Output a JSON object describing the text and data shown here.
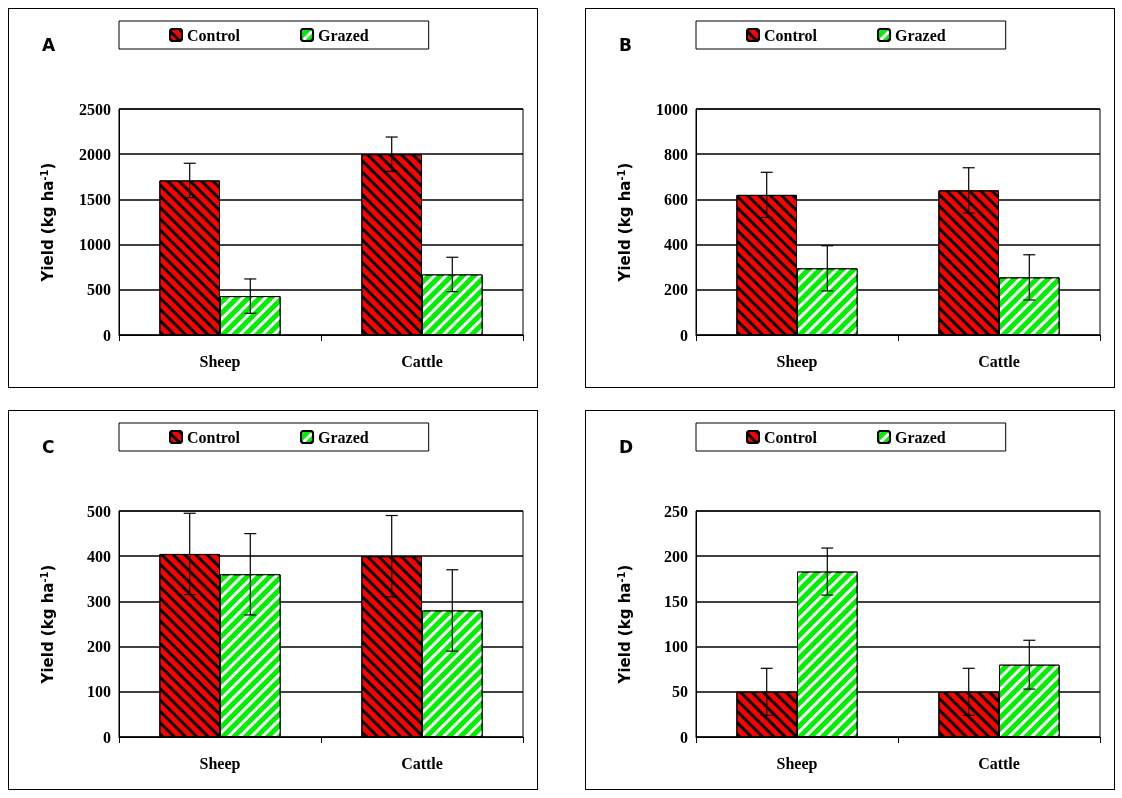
{
  "chart_data": [
    {
      "type": "bar",
      "title": "A",
      "categories": [
        "Sheep",
        "Cattle"
      ],
      "ylabel": "Yield (kg ha$^{-1}$)",
      "ylim": [
        0,
        2500
      ],
      "yticks": [
        0,
        500,
        1000,
        1500,
        2000,
        2500
      ],
      "grid": "y",
      "legend": "top",
      "series": [
        {
          "name": "Control",
          "color": "#ff0000",
          "values": [
            1710,
            2000
          ],
          "errors": [
            190,
            190
          ]
        },
        {
          "name": "Grazed",
          "color": "#00ee00",
          "values": [
            430,
            670
          ],
          "errors": [
            190,
            190
          ]
        }
      ]
    },
    {
      "type": "bar",
      "title": "B",
      "categories": [
        "Sheep",
        "Cattle"
      ],
      "ylabel": "Yield (kg ha$^{-1}$)",
      "ylim": [
        0,
        1000
      ],
      "yticks": [
        0,
        200,
        400,
        600,
        800,
        1000
      ],
      "grid": "y",
      "legend": "top",
      "series": [
        {
          "name": "Control",
          "color": "#ff0000",
          "values": [
            620,
            640
          ],
          "errors": [
            100,
            100
          ]
        },
        {
          "name": "Grazed",
          "color": "#00ee00",
          "values": [
            295,
            255
          ],
          "errors": [
            100,
            100
          ]
        }
      ]
    },
    {
      "type": "bar",
      "title": "C",
      "categories": [
        "Sheep",
        "Cattle"
      ],
      "ylabel": "Yield (kg ha$^{-1}$)",
      "ylim": [
        0,
        500
      ],
      "yticks": [
        0,
        100,
        200,
        300,
        400,
        500
      ],
      "grid": "y",
      "legend": "top",
      "series": [
        {
          "name": "Control",
          "color": "#ff0000",
          "values": [
            405,
            400
          ],
          "errors": [
            90,
            90
          ]
        },
        {
          "name": "Grazed",
          "color": "#00ee00",
          "values": [
            360,
            280
          ],
          "errors": [
            90,
            90
          ]
        }
      ]
    },
    {
      "type": "bar",
      "title": "D",
      "categories": [
        "Sheep",
        "Cattle"
      ],
      "ylabel": "Yield (kg ha$^{-1}$)",
      "ylim": [
        0,
        250
      ],
      "yticks": [
        0,
        50,
        100,
        150,
        200,
        250
      ],
      "grid": "y",
      "legend": "top",
      "series": [
        {
          "name": "Control",
          "color": "#ff0000",
          "values": [
            50,
            50
          ],
          "errors": [
            26,
            26
          ]
        },
        {
          "name": "Grazed",
          "color": "#00ee00",
          "values": [
            183,
            80
          ],
          "errors": [
            26,
            27
          ]
        }
      ]
    }
  ]
}
